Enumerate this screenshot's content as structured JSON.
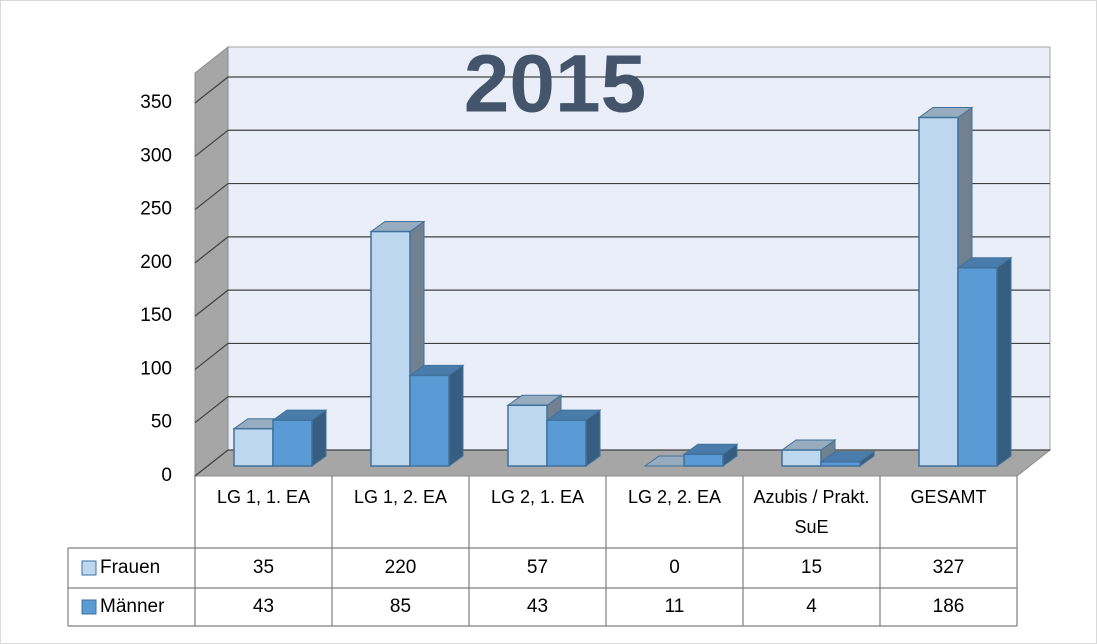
{
  "chart_data": {
    "type": "bar3d",
    "title": "2015",
    "categories": [
      "LG 1, 1. EA",
      "LG 1, 2. EA",
      "LG 2, 1. EA",
      "LG 2, 2. EA",
      "Azubis / Prakt. SuE",
      "GESAMT"
    ],
    "series": [
      {
        "name": "Frauen",
        "color": "#bdd7ee",
        "values": [
          35,
          220,
          57,
          0,
          15,
          327
        ]
      },
      {
        "name": "Männer",
        "color": "#5b9bd5",
        "values": [
          43,
          85,
          43,
          11,
          4,
          186
        ]
      }
    ],
    "ylim": [
      0,
      350
    ],
    "yticks": [
      0,
      50,
      100,
      150,
      200,
      250,
      300,
      350
    ],
    "grid": true,
    "data_table": true
  }
}
